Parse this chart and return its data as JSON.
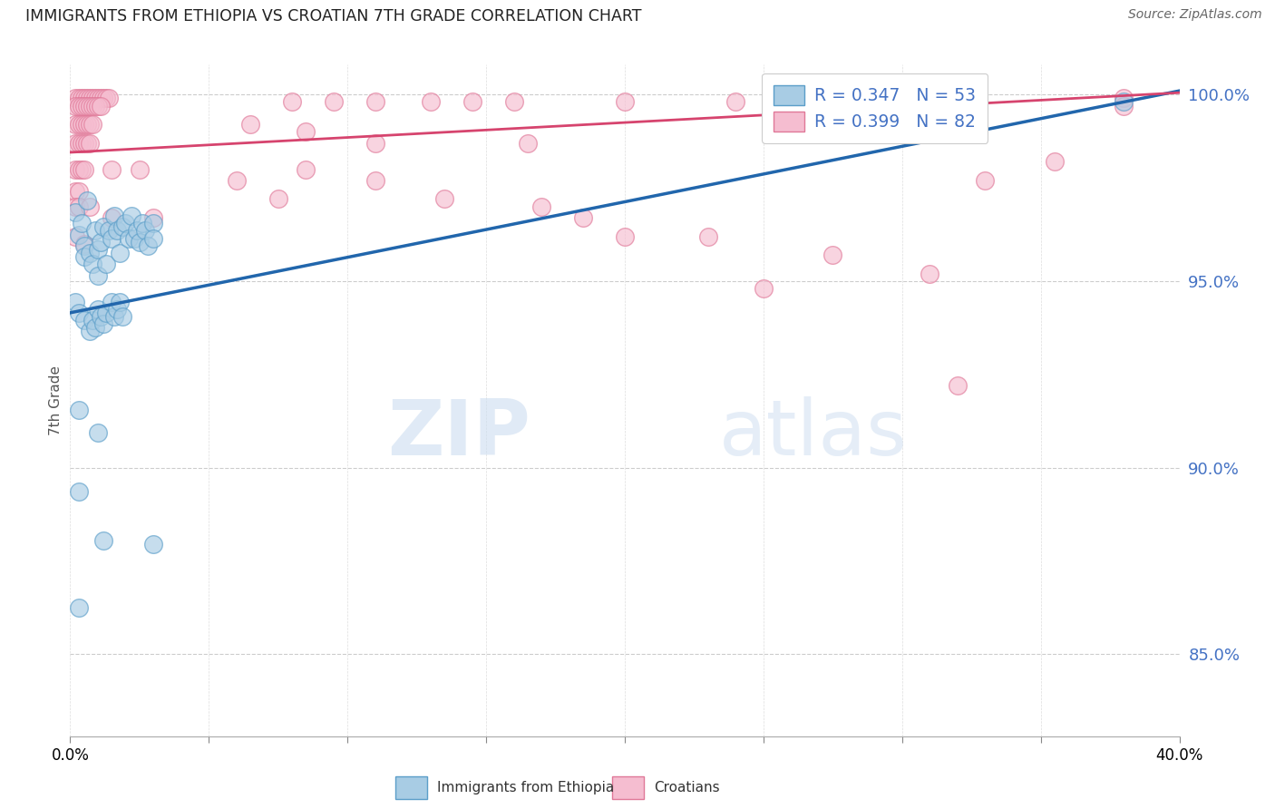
{
  "title": "IMMIGRANTS FROM ETHIOPIA VS CROATIAN 7TH GRADE CORRELATION CHART",
  "source": "Source: ZipAtlas.com",
  "ylabel": "7th Grade",
  "xlim": [
    0.0,
    0.4
  ],
  "ylim": [
    0.828,
    1.008
  ],
  "yticks": [
    0.85,
    0.9,
    0.95,
    1.0
  ],
  "ytick_labels": [
    "85.0%",
    "90.0%",
    "95.0%",
    "100.0%"
  ],
  "xticks": [
    0.0,
    0.05,
    0.1,
    0.15,
    0.2,
    0.25,
    0.3,
    0.35,
    0.4
  ],
  "legend_blue_r": "R = 0.347",
  "legend_blue_n": "N = 53",
  "legend_pink_r": "R = 0.399",
  "legend_pink_n": "N = 82",
  "blue_color": "#a8cce4",
  "blue_edge_color": "#5b9ec9",
  "pink_color": "#f5bdd0",
  "pink_edge_color": "#e07898",
  "blue_line_color": "#2166ac",
  "pink_line_color": "#d6446e",
  "watermark_zip": "ZIP",
  "watermark_atlas": "atlas",
  "blue_scatter_x": [
    0.002,
    0.003,
    0.004,
    0.005,
    0.005,
    0.006,
    0.007,
    0.008,
    0.009,
    0.01,
    0.01,
    0.011,
    0.012,
    0.013,
    0.014,
    0.015,
    0.016,
    0.017,
    0.018,
    0.019,
    0.02,
    0.021,
    0.022,
    0.023,
    0.024,
    0.025,
    0.026,
    0.027,
    0.028,
    0.03,
    0.03,
    0.002,
    0.003,
    0.005,
    0.007,
    0.008,
    0.009,
    0.01,
    0.011,
    0.012,
    0.013,
    0.015,
    0.016,
    0.017,
    0.018,
    0.019,
    0.003,
    0.01,
    0.003,
    0.012,
    0.03,
    0.003,
    0.38
  ],
  "blue_scatter_y": [
    0.9685,
    0.9625,
    0.9655,
    0.9595,
    0.9565,
    0.9715,
    0.9575,
    0.9545,
    0.9635,
    0.9585,
    0.9515,
    0.9605,
    0.9645,
    0.9545,
    0.9635,
    0.9615,
    0.9675,
    0.9635,
    0.9575,
    0.9645,
    0.9655,
    0.9615,
    0.9675,
    0.9615,
    0.9635,
    0.9605,
    0.9655,
    0.9635,
    0.9595,
    0.9655,
    0.9615,
    0.9445,
    0.9415,
    0.9395,
    0.9365,
    0.9395,
    0.9375,
    0.9425,
    0.9405,
    0.9385,
    0.9415,
    0.9445,
    0.9405,
    0.9425,
    0.9445,
    0.9405,
    0.9155,
    0.9095,
    0.8935,
    0.8805,
    0.8795,
    0.8625,
    0.998
  ],
  "pink_scatter_x": [
    0.002,
    0.003,
    0.004,
    0.005,
    0.006,
    0.007,
    0.008,
    0.009,
    0.01,
    0.011,
    0.012,
    0.013,
    0.014,
    0.002,
    0.003,
    0.004,
    0.005,
    0.006,
    0.007,
    0.008,
    0.009,
    0.01,
    0.011,
    0.002,
    0.003,
    0.004,
    0.005,
    0.006,
    0.007,
    0.008,
    0.002,
    0.003,
    0.004,
    0.005,
    0.006,
    0.007,
    0.002,
    0.003,
    0.004,
    0.005,
    0.015,
    0.025,
    0.002,
    0.003,
    0.002,
    0.003,
    0.007,
    0.015,
    0.03,
    0.002,
    0.005,
    0.08,
    0.095,
    0.11,
    0.13,
    0.145,
    0.16,
    0.2,
    0.24,
    0.275,
    0.31,
    0.065,
    0.085,
    0.11,
    0.165,
    0.085,
    0.11,
    0.135,
    0.23,
    0.275,
    0.33,
    0.355,
    0.38,
    0.38,
    0.25,
    0.31,
    0.32,
    0.06,
    0.075,
    0.17,
    0.185,
    0.2
  ],
  "pink_scatter_y": [
    0.999,
    0.999,
    0.999,
    0.999,
    0.999,
    0.999,
    0.999,
    0.999,
    0.999,
    0.999,
    0.999,
    0.999,
    0.999,
    0.997,
    0.997,
    0.997,
    0.997,
    0.997,
    0.997,
    0.997,
    0.997,
    0.997,
    0.997,
    0.992,
    0.992,
    0.992,
    0.992,
    0.992,
    0.992,
    0.992,
    0.987,
    0.987,
    0.987,
    0.987,
    0.987,
    0.987,
    0.98,
    0.98,
    0.98,
    0.98,
    0.98,
    0.98,
    0.974,
    0.974,
    0.97,
    0.97,
    0.97,
    0.967,
    0.967,
    0.962,
    0.96,
    0.998,
    0.998,
    0.998,
    0.998,
    0.998,
    0.998,
    0.998,
    0.998,
    0.998,
    0.998,
    0.992,
    0.99,
    0.987,
    0.987,
    0.98,
    0.977,
    0.972,
    0.962,
    0.957,
    0.977,
    0.982,
    0.999,
    0.997,
    0.948,
    0.952,
    0.922,
    0.977,
    0.972,
    0.97,
    0.967,
    0.962
  ],
  "blue_trendline_x": [
    0.0,
    0.4
  ],
  "blue_trendline_y": [
    0.9415,
    1.001
  ],
  "pink_trendline_x": [
    0.0,
    0.4
  ],
  "pink_trendline_y": [
    0.9845,
    1.0005
  ]
}
